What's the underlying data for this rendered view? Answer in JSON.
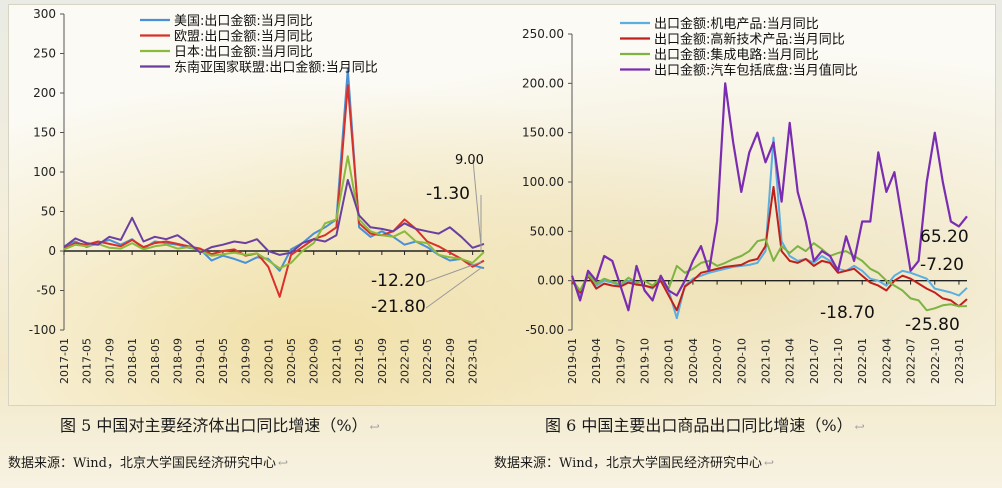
{
  "chart_data": [
    {
      "type": "line",
      "ylim": [
        -100,
        300
      ],
      "yticks": [
        -100,
        -50,
        0,
        50,
        100,
        150,
        200,
        250,
        300
      ],
      "x": [
        "2017-01",
        "2017-03",
        "2017-05",
        "2017-07",
        "2017-09",
        "2017-11",
        "2018-01",
        "2018-03",
        "2018-05",
        "2018-07",
        "2018-09",
        "2018-11",
        "2019-01",
        "2019-03",
        "2019-05",
        "2019-07",
        "2019-09",
        "2019-11",
        "2020-01",
        "2020-03",
        "2020-05",
        "2020-07",
        "2020-09",
        "2020-11",
        "2021-01",
        "2021-03",
        "2021-05",
        "2021-07",
        "2021-09",
        "2021-11",
        "2022-01",
        "2022-03",
        "2022-05",
        "2022-07",
        "2022-09",
        "2022-11",
        "2023-01",
        "2023-02"
      ],
      "xticks": [
        "2017-01",
        "2017-05",
        "2017-09",
        "2018-01",
        "2018-05",
        "2018-09",
        "2019-01",
        "2019-05",
        "2019-09",
        "2020-01",
        "2020-05",
        "2020-09",
        "2021-01",
        "2021-05",
        "2021-09",
        "2022-01",
        "2022-05",
        "2022-09",
        "2023-01"
      ],
      "series": [
        {
          "name": "美国:出口金额:当月同比",
          "color": "#4a90d6",
          "values": [
            6,
            12,
            5,
            10,
            14,
            8,
            15,
            3,
            12,
            10,
            8,
            4,
            2,
            -12,
            -6,
            -10,
            -15,
            -8,
            -10,
            -25,
            2,
            10,
            22,
            30,
            40,
            230,
            30,
            18,
            25,
            18,
            8,
            12,
            5,
            -5,
            -12,
            -10,
            -18,
            -21.8
          ]
        },
        {
          "name": "欧盟:出口金额:当月同比",
          "color": "#d9302a",
          "values": [
            3,
            10,
            8,
            12,
            9,
            6,
            14,
            5,
            10,
            12,
            9,
            6,
            3,
            -4,
            0,
            2,
            -6,
            -3,
            -20,
            -58,
            -5,
            5,
            15,
            20,
            30,
            210,
            35,
            22,
            20,
            25,
            40,
            28,
            12,
            6,
            -2,
            -10,
            -20,
            -12.2
          ]
        },
        {
          "name": "日本:出口金额:当月同比",
          "color": "#8cba3c",
          "values": [
            2,
            8,
            6,
            9,
            4,
            3,
            10,
            2,
            6,
            8,
            3,
            5,
            0,
            -6,
            -4,
            -2,
            -5,
            -3,
            -12,
            -22,
            -15,
            0,
            10,
            35,
            40,
            120,
            40,
            25,
            20,
            18,
            25,
            12,
            10,
            -5,
            -8,
            -10,
            -15,
            -1.3
          ]
        },
        {
          "name": "东南亚国家联盟:出口金额:当月同比",
          "color": "#6a3fa0",
          "values": [
            5,
            16,
            10,
            8,
            18,
            14,
            42,
            12,
            18,
            15,
            20,
            10,
            -2,
            5,
            8,
            12,
            10,
            15,
            0,
            -5,
            -2,
            10,
            15,
            12,
            20,
            90,
            45,
            30,
            28,
            25,
            35,
            28,
            25,
            22,
            30,
            18,
            4,
            9
          ]
        }
      ],
      "annotations": [
        "9.00",
        "-1.30",
        "-12.20",
        "-21.80"
      ],
      "caption": "图 5  中国对主要经济体出口同比增速（%）",
      "source": "数据来源：Wind，北京大学国民经济研究中心"
    },
    {
      "type": "line",
      "ylim": [
        -50,
        250
      ],
      "yticks": [
        "-50.00",
        "0.00",
        "50.00",
        "100.00",
        "150.00",
        "200.00",
        "250.00"
      ],
      "x": [
        "2019-01",
        "2019-02",
        "2019-03",
        "2019-04",
        "2019-05",
        "2019-06",
        "2019-07",
        "2019-08",
        "2019-09",
        "2019-10",
        "2019-11",
        "2019-12",
        "2020-01",
        "2020-02",
        "2020-03",
        "2020-04",
        "2020-05",
        "2020-06",
        "2020-07",
        "2020-08",
        "2020-09",
        "2020-10",
        "2020-11",
        "2020-12",
        "2021-01",
        "2021-02",
        "2021-03",
        "2021-04",
        "2021-05",
        "2021-06",
        "2021-07",
        "2021-08",
        "2021-09",
        "2021-10",
        "2021-11",
        "2021-12",
        "2022-01",
        "2022-02",
        "2022-03",
        "2022-04",
        "2022-05",
        "2022-06",
        "2022-07",
        "2022-08",
        "2022-09",
        "2022-10",
        "2022-11",
        "2022-12",
        "2023-01",
        "2023-02"
      ],
      "xticks": [
        "2019-01",
        "2019-04",
        "2019-07",
        "2019-10",
        "2020-01",
        "2020-04",
        "2020-07",
        "2020-10",
        "2021-01",
        "2021-04",
        "2021-07",
        "2021-10",
        "2022-01",
        "2022-04",
        "2022-07",
        "2022-10",
        "2023-01"
      ],
      "series": [
        {
          "name": "出口金额:机电产品:当月同比",
          "color": "#5aaee0",
          "values": [
            2,
            -15,
            8,
            -5,
            0,
            -2,
            -5,
            0,
            -3,
            -5,
            -8,
            2,
            -10,
            -38,
            -5,
            2,
            5,
            8,
            10,
            12,
            14,
            15,
            16,
            18,
            30,
            145,
            40,
            25,
            20,
            22,
            18,
            25,
            20,
            12,
            10,
            15,
            10,
            2,
            0,
            -5,
            5,
            10,
            8,
            5,
            2,
            -8,
            -10,
            -12,
            -15,
            -7.2
          ]
        },
        {
          "name": "出口金额:高新技术产品:当月同比",
          "color": "#c0201b",
          "values": [
            0,
            -12,
            5,
            -8,
            -3,
            -5,
            -6,
            -2,
            -4,
            -5,
            -7,
            0,
            -15,
            -30,
            -6,
            0,
            8,
            10,
            12,
            14,
            15,
            16,
            20,
            22,
            35,
            95,
            30,
            20,
            18,
            22,
            15,
            20,
            18,
            8,
            10,
            12,
            5,
            -2,
            -5,
            -10,
            0,
            5,
            2,
            -3,
            -8,
            -12,
            -18,
            -20,
            -26,
            -18.7
          ]
        },
        {
          "name": "出口金额:集成电路:当月同比",
          "color": "#7cb342",
          "values": [
            1,
            -10,
            6,
            -3,
            2,
            -1,
            -4,
            3,
            -2,
            0,
            -5,
            3,
            -8,
            15,
            8,
            12,
            18,
            20,
            15,
            18,
            22,
            25,
            30,
            40,
            42,
            20,
            35,
            28,
            35,
            30,
            38,
            32,
            25,
            28,
            30,
            25,
            20,
            12,
            8,
            0,
            -5,
            -10,
            -18,
            -20,
            -30,
            -28,
            -25,
            -24,
            -26,
            -25.8
          ]
        },
        {
          "name": "出口金额:汽车包括底盘:当月值同比",
          "color": "#7a2db0",
          "values": [
            5,
            -20,
            10,
            0,
            25,
            20,
            -5,
            -30,
            15,
            -10,
            -20,
            5,
            -10,
            -15,
            0,
            20,
            35,
            10,
            60,
            200,
            140,
            90,
            130,
            150,
            120,
            140,
            80,
            160,
            90,
            60,
            20,
            30,
            25,
            10,
            45,
            20,
            60,
            60,
            130,
            90,
            110,
            60,
            10,
            20,
            100,
            150,
            100,
            60,
            55,
            65.2
          ]
        }
      ],
      "annotations": [
        "65.20",
        "-7.20",
        "-18.70",
        "-25.80"
      ],
      "caption": "图 6  中国主要出口商品出口同比增速（%）",
      "source": "数据来源：Wind，北京大学国民经济研究中心"
    }
  ]
}
